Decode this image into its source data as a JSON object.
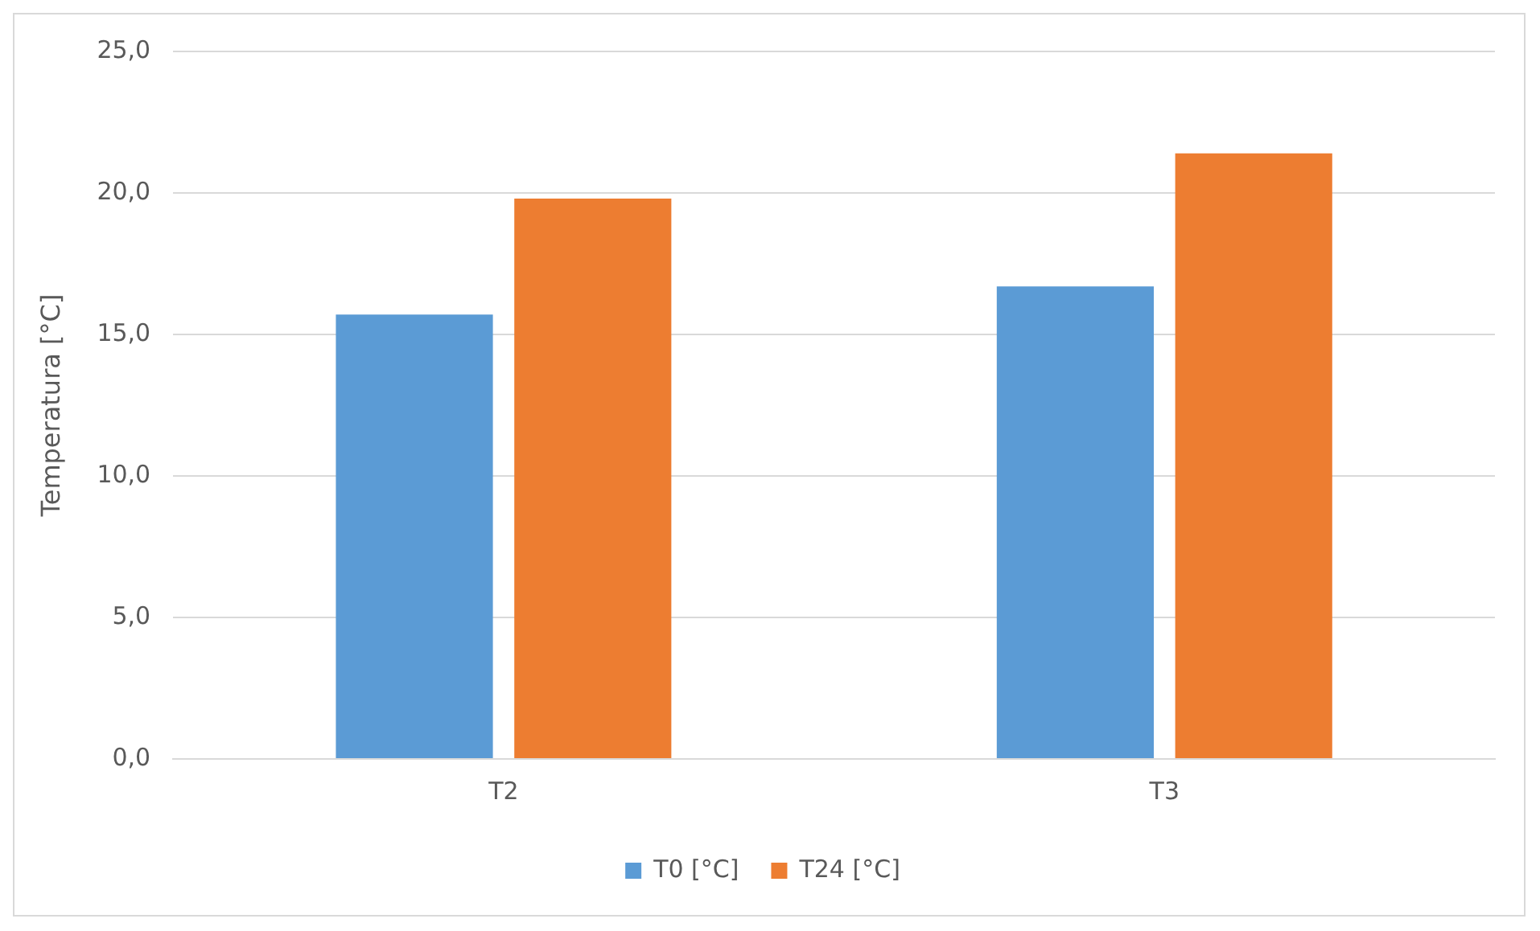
{
  "chart_data": {
    "type": "bar",
    "ylabel": "Temperatura [°C]",
    "categories": [
      "T2",
      "T3"
    ],
    "series": [
      {
        "name": "T0 [°C]",
        "color": "#5b9bd5",
        "values": [
          15.7,
          16.7
        ]
      },
      {
        "name": "T24 [°C]",
        "color": "#ed7d31",
        "values": [
          19.8,
          21.4
        ]
      }
    ],
    "ylim": [
      0,
      25
    ],
    "yticks": [
      {
        "value": 0,
        "label": "0,0"
      },
      {
        "value": 5,
        "label": "5,0"
      },
      {
        "value": 10,
        "label": "10,0"
      },
      {
        "value": 15,
        "label": "15,0"
      },
      {
        "value": 20,
        "label": "20,0"
      },
      {
        "value": 25,
        "label": "25,0"
      }
    ],
    "grid": "y",
    "legend": "bottom"
  }
}
